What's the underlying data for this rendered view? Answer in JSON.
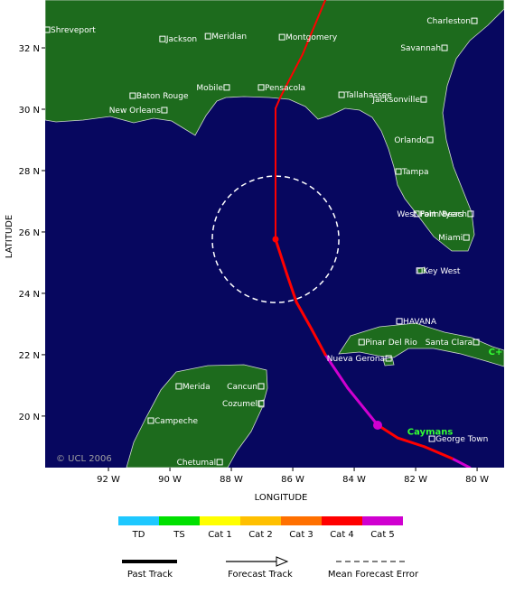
{
  "map": {
    "lon_range": [
      -94.06,
      -79.12
    ],
    "lat_range": [
      18.32,
      33.56
    ],
    "xticks": [
      {
        "value": -92,
        "label": "92 W"
      },
      {
        "value": -90,
        "label": "90 W"
      },
      {
        "value": -88,
        "label": "88 W"
      },
      {
        "value": -86,
        "label": "86 W"
      },
      {
        "value": -84,
        "label": "84 W"
      },
      {
        "value": -82,
        "label": "82 W"
      },
      {
        "value": -80,
        "label": "80 W"
      }
    ],
    "yticks": [
      {
        "value": 32,
        "label": "32 N"
      },
      {
        "value": 30,
        "label": "30 N"
      },
      {
        "value": 28,
        "label": "28 N"
      },
      {
        "value": 26,
        "label": "26 N"
      },
      {
        "value": 24,
        "label": "24 N"
      },
      {
        "value": 22,
        "label": "22 N"
      },
      {
        "value": 20,
        "label": "20 N"
      }
    ],
    "xlabel": "LONGITUDE",
    "ylabel": "LATITUDE",
    "copyright": "© UCL 2006",
    "cities": [
      {
        "name": "Shreveport",
        "lon": -94.0,
        "lat": 32.59,
        "side": "right"
      },
      {
        "name": "Jackson",
        "lon": -90.24,
        "lat": 32.29,
        "side": "right"
      },
      {
        "name": "Meridian",
        "lon": -88.76,
        "lat": 32.38,
        "side": "right"
      },
      {
        "name": "Montgomery",
        "lon": -86.35,
        "lat": 32.35,
        "side": "right"
      },
      {
        "name": "Charleston",
        "lon": -80.09,
        "lat": 32.88,
        "side": "left"
      },
      {
        "name": "Savannah",
        "lon": -81.06,
        "lat": 32.0,
        "side": "left"
      },
      {
        "name": "Mobile",
        "lon": -88.15,
        "lat": 30.71,
        "side": "left"
      },
      {
        "name": "Pensacola",
        "lon": -87.03,
        "lat": 30.71,
        "side": "right"
      },
      {
        "name": "Tallahassee",
        "lon": -84.41,
        "lat": 30.47,
        "side": "right"
      },
      {
        "name": "Jacksonville",
        "lon": -81.74,
        "lat": 30.32,
        "side": "left"
      },
      {
        "name": "Baton Rouge",
        "lon": -91.21,
        "lat": 30.44,
        "side": "right"
      },
      {
        "name": "New Orleans",
        "lon": -90.18,
        "lat": 29.97,
        "side": "left"
      },
      {
        "name": "Orlando",
        "lon": -81.53,
        "lat": 29.0,
        "side": "left"
      },
      {
        "name": "Tampa",
        "lon": -82.56,
        "lat": 27.97,
        "side": "right"
      },
      {
        "name": "West Palm Beach",
        "lon": -80.21,
        "lat": 26.59,
        "side": "left"
      },
      {
        "name": "Fort Myers",
        "lon": -81.97,
        "lat": 26.59,
        "side": "right"
      },
      {
        "name": "Miami",
        "lon": -80.35,
        "lat": 25.82,
        "side": "left"
      },
      {
        "name": "Key West",
        "lon": -81.88,
        "lat": 24.74,
        "side": "right"
      },
      {
        "name": "HAVANA",
        "lon": -82.53,
        "lat": 23.09,
        "side": "right"
      },
      {
        "name": "Pinar Del Rio",
        "lon": -83.76,
        "lat": 22.41,
        "side": "right"
      },
      {
        "name": "Santa Clara",
        "lon": -80.03,
        "lat": 22.41,
        "side": "left"
      },
      {
        "name": "Nueva Gerona",
        "lon": -82.88,
        "lat": 21.88,
        "side": "left"
      },
      {
        "name": "Merida",
        "lon": -89.71,
        "lat": 20.97,
        "side": "right"
      },
      {
        "name": "Cancun",
        "lon": -87.03,
        "lat": 20.97,
        "side": "left"
      },
      {
        "name": "Cozumel",
        "lon": -87.03,
        "lat": 20.41,
        "side": "left"
      },
      {
        "name": "Campeche",
        "lon": -90.62,
        "lat": 19.85,
        "side": "right"
      },
      {
        "name": "Chetumal",
        "lon": -88.38,
        "lat": 18.5,
        "side": "left"
      },
      {
        "name": "George Town",
        "lon": -81.47,
        "lat": 19.26,
        "side": "right"
      }
    ],
    "regions": [
      {
        "name": "Caymans",
        "lon": -81.53,
        "lat": 19.4
      },
      {
        "name": "C+",
        "lon": -79.4,
        "lat": 22.0
      }
    ],
    "categories": [
      {
        "name": "TD",
        "color": "#1ec8ff"
      },
      {
        "name": "TS",
        "color": "#00e000"
      },
      {
        "name": "Cat 1",
        "color": "#ffff00"
      },
      {
        "name": "Cat 2",
        "color": "#ffc000"
      },
      {
        "name": "Cat 3",
        "color": "#ff7000"
      },
      {
        "name": "Cat 4",
        "color": "#ff0000"
      },
      {
        "name": "Cat 5",
        "color": "#d000d0"
      }
    ],
    "past_track": [
      {
        "lon": -80.24,
        "lat": 18.32,
        "category": "Cat 5"
      },
      {
        "lon": -80.82,
        "lat": 18.62,
        "category": "Cat 4"
      },
      {
        "lon": -81.71,
        "lat": 19.0,
        "category": "Cat 4"
      },
      {
        "lon": -82.59,
        "lat": 19.29,
        "category": "Cat 4"
      },
      {
        "lon": -83.24,
        "lat": 19.71,
        "category": "Cat 5"
      },
      {
        "lon": -84.21,
        "lat": 20.91,
        "category": "Cat 5"
      },
      {
        "lon": -84.94,
        "lat": 22.0,
        "category": "Cat 4"
      },
      {
        "lon": -85.38,
        "lat": 22.82,
        "category": "Cat 4"
      },
      {
        "lon": -85.88,
        "lat": 23.71,
        "category": "Cat 4"
      },
      {
        "lon": -86.18,
        "lat": 24.59,
        "category": "Cat 4"
      },
      {
        "lon": -86.56,
        "lat": 25.76,
        "category": "Cat 4"
      }
    ],
    "forecast_track": [
      {
        "lon": -86.56,
        "lat": 25.76,
        "category": "Cat 4"
      },
      {
        "lon": -86.56,
        "lat": 30.03,
        "category": "Cat 4"
      },
      {
        "lon": -86.41,
        "lat": 30.38,
        "category": "Cat 4"
      },
      {
        "lon": -85.68,
        "lat": 31.79,
        "category": "Cat 4"
      },
      {
        "lon": -84.94,
        "lat": 33.56,
        "category": "Cat 4"
      }
    ],
    "error_radius_deg": 2.06,
    "legend": {
      "past": "Past Track",
      "forecast": "Forecast Track",
      "error": "Mean Forecast Error"
    }
  }
}
